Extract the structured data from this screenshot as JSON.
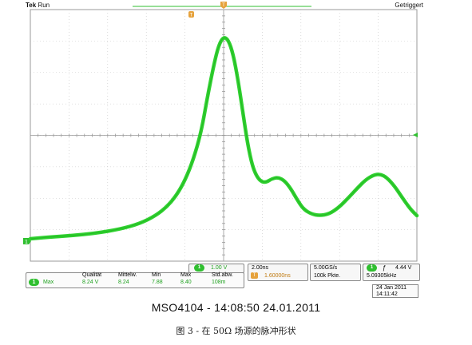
{
  "header": {
    "brand": "Tek",
    "state": "Run",
    "trigger_status": "Getriggert"
  },
  "markers": {
    "trigger_position": "T",
    "channel_level": "1"
  },
  "channel": {
    "badge": "1",
    "scale": "1.00 V"
  },
  "timebase": {
    "scale": "2.00ns",
    "position": "1.60000ns",
    "sample_rate": "5.00GS/s",
    "record_length": "100k Pkte."
  },
  "trigger": {
    "badge": "1",
    "slope": "ƒ",
    "level": "4.44 V",
    "frequency": "5.09305kHz"
  },
  "measurement": {
    "headers": [
      "Qualität",
      "Mittelw.",
      "Min",
      "Max",
      "Std.abw."
    ],
    "badge": "1",
    "name": "Max",
    "values": [
      "8.24 V",
      "8.24",
      "7.88",
      "8.40",
      "108m"
    ]
  },
  "date": {
    "day": "24 Jan  2011",
    "time": "14:11:42"
  },
  "caption": {
    "main": "MSO4104 - 14:08:50   24.01.2011",
    "sub": "图 3 -  在 50Ω 场源的脉冲形状"
  },
  "colors": {
    "trace": "#2fd12f",
    "grid": "#9a9a9a",
    "accent": "#2fbf2f",
    "marker": "#e6a23c"
  }
}
